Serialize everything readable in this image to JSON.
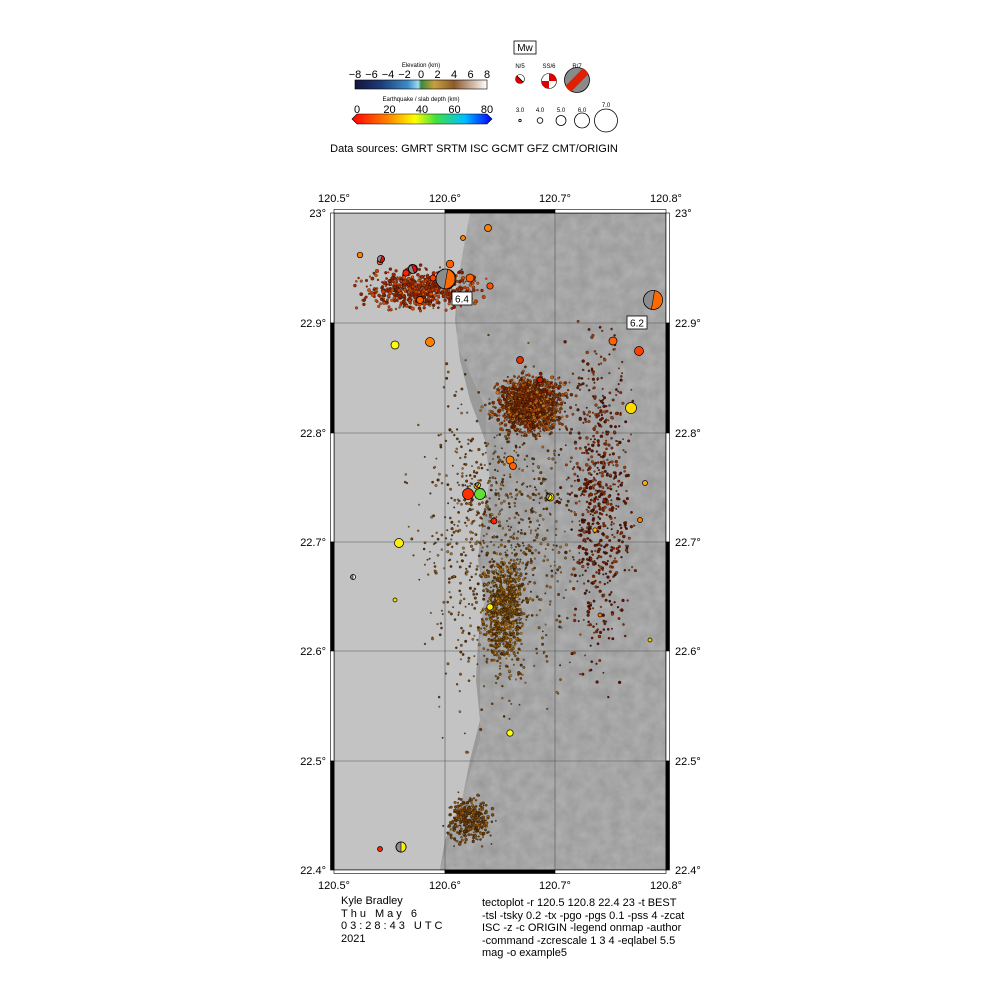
{
  "legend": {
    "elevation_title": "Elevation (km)",
    "elevation_ticks": [
      "−8",
      "−6",
      "−4",
      "−2",
      "0",
      "2",
      "4",
      "6",
      "8"
    ],
    "depth_title": "Earthquake / slab depth (km)",
    "depth_ticks": [
      "0",
      "20",
      "40",
      "60",
      "80"
    ],
    "mw_label": "Mw",
    "mechanism_labels": [
      "N/5",
      "SS/6",
      "R/7"
    ],
    "magnitude_labels": [
      "3.0",
      "4.0",
      "5.0",
      "6.0",
      "7.0"
    ],
    "data_sources": "Data sources: GMRT SRTM ISC GCMT GFZ CMT/ORIGIN"
  },
  "map": {
    "top_lon_labels": [
      "120.5°",
      "120.6°",
      "120.7°",
      "120.8°"
    ],
    "bottom_lon_labels": [
      "120.5°",
      "120.6°",
      "120.7°",
      "120.8°"
    ],
    "left_lat_labels": [
      "23°",
      "22.9°",
      "22.8°",
      "22.7°",
      "22.6°",
      "22.5°",
      "22.4°"
    ],
    "right_lat_labels": [
      "23°",
      "22.9°",
      "22.8°",
      "22.7°",
      "22.6°",
      "22.5°",
      "22.4°"
    ],
    "eq_labels": [
      "6.4",
      "6.2"
    ]
  },
  "footer": {
    "author": "Kyle Bradley",
    "date_line": "Thu May 6",
    "time_line": "03:28:43 UTC",
    "year": "2021",
    "command": [
      "tectoplot -r 120.5 120.8 22.4 23 -t BEST",
      "-tsl -tsky 0.2 -tx -pgo -pgs 0.1 -pss 4 -zcat",
      "ISC -z -c ORIGIN -legend onmap -author",
      "-command -zcrescale 1 3 4 -eqlabel 5.5",
      "mag -o example5"
    ]
  },
  "colors": {
    "plain": "#c4c4c4",
    "depth_scale": [
      "#ff0000",
      "#ff8000",
      "#ffff00",
      "#40ff40",
      "#00c0ff",
      "#0000ff"
    ]
  }
}
